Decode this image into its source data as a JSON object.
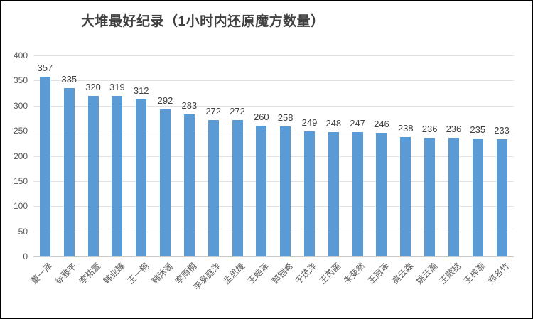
{
  "chart_data": {
    "type": "bar",
    "title": "大堆最好纪录（1小时内还原魔方数量）",
    "categories": [
      "董一泽",
      "徐雅芊",
      "李祐萱",
      "韩业臻",
      "王一桐",
      "韩沐遥",
      "李雨桐",
      "李易庭洋",
      "孟思绫",
      "王皓泽",
      "郭铠希",
      "于茂洋",
      "王芮菡",
      "朱斐然",
      "王冠泽",
      "高云森",
      "姚云瀚",
      "王颢喆",
      "王梓灏",
      "郑名竹"
    ],
    "values": [
      357,
      335,
      320,
      319,
      312,
      292,
      283,
      272,
      272,
      260,
      258,
      249,
      248,
      247,
      246,
      238,
      236,
      236,
      235,
      233
    ],
    "xlabel": "",
    "ylabel": "",
    "ylim": [
      0,
      400
    ],
    "yticks": [
      0,
      50,
      100,
      150,
      200,
      250,
      300,
      350,
      400
    ],
    "grid": true,
    "legend": false,
    "bar_color": "#5b9bd5",
    "value_label_color": "#404040",
    "axis_tick_color": "#595959",
    "gridline_color": "#e2e2e2",
    "axis_line_color": "#c9c9c9",
    "title_color": "#404040",
    "frame_border_color": "#000000",
    "background_color": "#ffffff"
  }
}
